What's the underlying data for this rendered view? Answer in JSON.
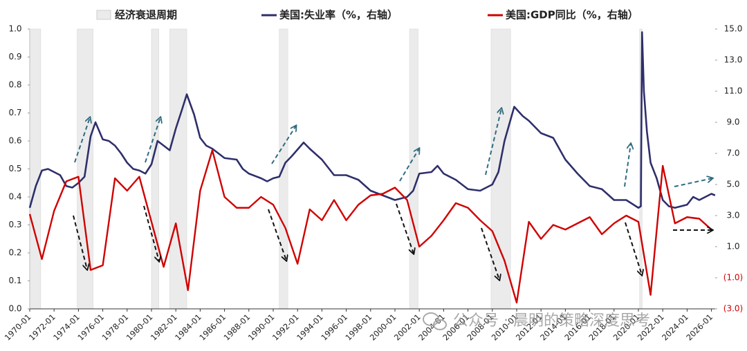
{
  "chart_data": {
    "type": "line",
    "legend": "top",
    "watermark": "公众号 · 晨明的策略深度思考",
    "xlim": [
      1970,
      2026.3
    ],
    "xticks": [
      {
        "value": 1970,
        "label": "1970-01"
      },
      {
        "value": 1972,
        "label": "1972-01"
      },
      {
        "value": 1974,
        "label": "1974-01"
      },
      {
        "value": 1976,
        "label": "1976-01"
      },
      {
        "value": 1978,
        "label": "1978-01"
      },
      {
        "value": 1980,
        "label": "1980-01"
      },
      {
        "value": 1982,
        "label": "1982-01"
      },
      {
        "value": 1984,
        "label": "1984-01"
      },
      {
        "value": 1986,
        "label": "1986-01"
      },
      {
        "value": 1988,
        "label": "1988-01"
      },
      {
        "value": 1990,
        "label": "1990-01"
      },
      {
        "value": 1992,
        "label": "1992-01"
      },
      {
        "value": 1994,
        "label": "1994-01"
      },
      {
        "value": 1996,
        "label": "1996-01"
      },
      {
        "value": 1998,
        "label": "1998-01"
      },
      {
        "value": 2000,
        "label": "2000-01"
      },
      {
        "value": 2002,
        "label": "2002-01"
      },
      {
        "value": 2004,
        "label": "2004-01"
      },
      {
        "value": 2006,
        "label": "2006-01"
      },
      {
        "value": 2008,
        "label": "2008-01"
      },
      {
        "value": 2010,
        "label": "2010-01"
      },
      {
        "value": 2012,
        "label": "2012-01"
      },
      {
        "value": 2014,
        "label": "2014-01"
      },
      {
        "value": 2016,
        "label": "2016-01"
      },
      {
        "value": 2018,
        "label": "2018-01"
      },
      {
        "value": 2020,
        "label": "2020-01"
      },
      {
        "value": 2022,
        "label": "2022-01"
      },
      {
        "value": 2024,
        "label": "2024-01"
      },
      {
        "value": 2026,
        "label": "2026-01"
      }
    ],
    "ylim": [
      0,
      1
    ],
    "yticks": [
      {
        "value": 0,
        "label": "0.0"
      },
      0.1,
      0.2,
      0.3,
      0.4,
      0.5,
      0.6,
      0.7,
      0.8,
      0.9,
      {
        "value": 1,
        "label": "1.0"
      }
    ],
    "y2lim": [
      -3,
      15
    ],
    "y2ticks": [
      {
        "value": -3,
        "label": "(3.0)",
        "color": "#d00000"
      },
      {
        "value": -1,
        "label": "(1.0)",
        "color": "#d00000"
      },
      {
        "value": 1,
        "label": "1.0"
      },
      {
        "value": 3,
        "label": "3.0"
      },
      {
        "value": 5,
        "label": "5.0"
      },
      {
        "value": 7,
        "label": "7.0"
      },
      {
        "value": 9,
        "label": "9.0"
      },
      {
        "value": 11,
        "label": "11.0"
      },
      {
        "value": 13,
        "label": "13.0"
      },
      {
        "value": 15,
        "label": "15.0"
      }
    ],
    "recessions": {
      "name": "经济衰退周期",
      "color": "#ebebeb",
      "ranges": [
        [
          1970.0,
          1970.9
        ],
        [
          1973.9,
          1975.2
        ],
        [
          1980.0,
          1980.6
        ],
        [
          1981.5,
          1982.9
        ],
        [
          1990.5,
          1991.2
        ],
        [
          2001.2,
          2001.9
        ],
        [
          2007.9,
          2009.5
        ],
        [
          2020.1,
          2020.3
        ]
      ],
      "values": [
        1,
        1,
        1,
        1,
        1,
        1,
        1,
        1
      ]
    },
    "series": [
      {
        "name": "美国:失业率（%，右轴）",
        "color": "#2e2f6b",
        "axis": "y2",
        "x": [
          1970.0,
          1970.5,
          1971.0,
          1971.5,
          1972.0,
          1972.5,
          1973.0,
          1973.5,
          1974.0,
          1974.5,
          1975.0,
          1975.4,
          1976.0,
          1976.5,
          1977.0,
          1977.5,
          1978.0,
          1978.5,
          1979.0,
          1979.5,
          1980.0,
          1980.5,
          1981.0,
          1981.5,
          1982.0,
          1982.5,
          1982.9,
          1983.5,
          1984.0,
          1984.5,
          1985.0,
          1986.0,
          1987.0,
          1987.5,
          1988.0,
          1989.0,
          1989.5,
          1990.0,
          1990.5,
          1991.0,
          1991.5,
          1992.5,
          1993.0,
          1994.0,
          1995.0,
          1996.0,
          1997.0,
          1998.0,
          1999.0,
          2000.0,
          2001.0,
          2001.5,
          2002.0,
          2003.0,
          2003.5,
          2004.0,
          2005.0,
          2006.0,
          2007.0,
          2008.0,
          2008.5,
          2009.0,
          2009.8,
          2010.5,
          2011.0,
          2012.0,
          2013.0,
          2014.0,
          2015.0,
          2016.0,
          2017.0,
          2018.0,
          2019.0,
          2020.0,
          2020.2,
          2020.3,
          2020.45,
          2020.7,
          2021.0,
          2021.5,
          2022.0,
          2022.5,
          2023.0,
          2024.0,
          2024.5,
          2025.0,
          2025.5,
          2026.0,
          2026.3
        ],
        "values": [
          3.5,
          4.9,
          5.9,
          6.0,
          5.8,
          5.6,
          4.9,
          4.8,
          5.1,
          5.5,
          8.1,
          9.0,
          7.9,
          7.8,
          7.5,
          7.0,
          6.4,
          6.0,
          5.9,
          5.7,
          6.3,
          7.8,
          7.5,
          7.2,
          8.6,
          9.8,
          10.8,
          9.5,
          8.0,
          7.5,
          7.3,
          6.7,
          6.6,
          6.0,
          5.7,
          5.4,
          5.2,
          5.4,
          5.5,
          6.4,
          6.8,
          7.7,
          7.3,
          6.6,
          5.6,
          5.6,
          5.3,
          4.6,
          4.3,
          4.0,
          4.2,
          4.6,
          5.7,
          5.8,
          6.2,
          5.7,
          5.3,
          4.7,
          4.6,
          5.0,
          5.8,
          7.8,
          10.0,
          9.4,
          9.1,
          8.3,
          8.0,
          6.6,
          5.7,
          4.9,
          4.7,
          4.0,
          4.0,
          3.5,
          3.6,
          14.8,
          11.0,
          8.4,
          6.4,
          5.4,
          4.0,
          3.6,
          3.5,
          3.7,
          4.2,
          4.0,
          4.2,
          4.4,
          4.3
        ]
      },
      {
        "name": "美国:GDP同比（%，右轴）",
        "color": "#d00000",
        "axis": "y2",
        "x": [
          1970,
          1971,
          1972,
          1973,
          1974,
          1975,
          1976,
          1977,
          1978,
          1979,
          1980,
          1981,
          1982,
          1983,
          1984,
          1985,
          1986,
          1987,
          1988,
          1989,
          1990,
          1991,
          1992,
          1993,
          1994,
          1995,
          1996,
          1997,
          1998,
          1999,
          2000,
          2001,
          2002,
          2003,
          2004,
          2005,
          2006,
          2007,
          2008,
          2009,
          2010,
          2011,
          2012,
          2013,
          2014,
          2015,
          2016,
          2017,
          2018,
          2019,
          2020,
          2021,
          2022,
          2023,
          2024,
          2025,
          2026
        ],
        "values": [
          3.1,
          0.2,
          3.3,
          5.2,
          5.5,
          -0.5,
          -0.2,
          5.4,
          4.6,
          5.5,
          2.6,
          -0.3,
          2.5,
          -1.8,
          4.6,
          7.2,
          4.2,
          3.5,
          3.5,
          4.2,
          3.7,
          2.2,
          -0.1,
          3.4,
          2.7,
          4.0,
          2.7,
          3.7,
          4.3,
          4.4,
          4.8,
          4.0,
          1.0,
          1.7,
          2.7,
          3.8,
          3.5,
          2.7,
          2.0,
          0.1,
          -2.6,
          2.6,
          1.5,
          2.4,
          2.1,
          2.5,
          2.9,
          1.8,
          2.5,
          3.0,
          2.6,
          -2.1,
          6.2,
          2.5,
          2.9,
          2.8,
          2.1
        ]
      }
    ]
  }
}
